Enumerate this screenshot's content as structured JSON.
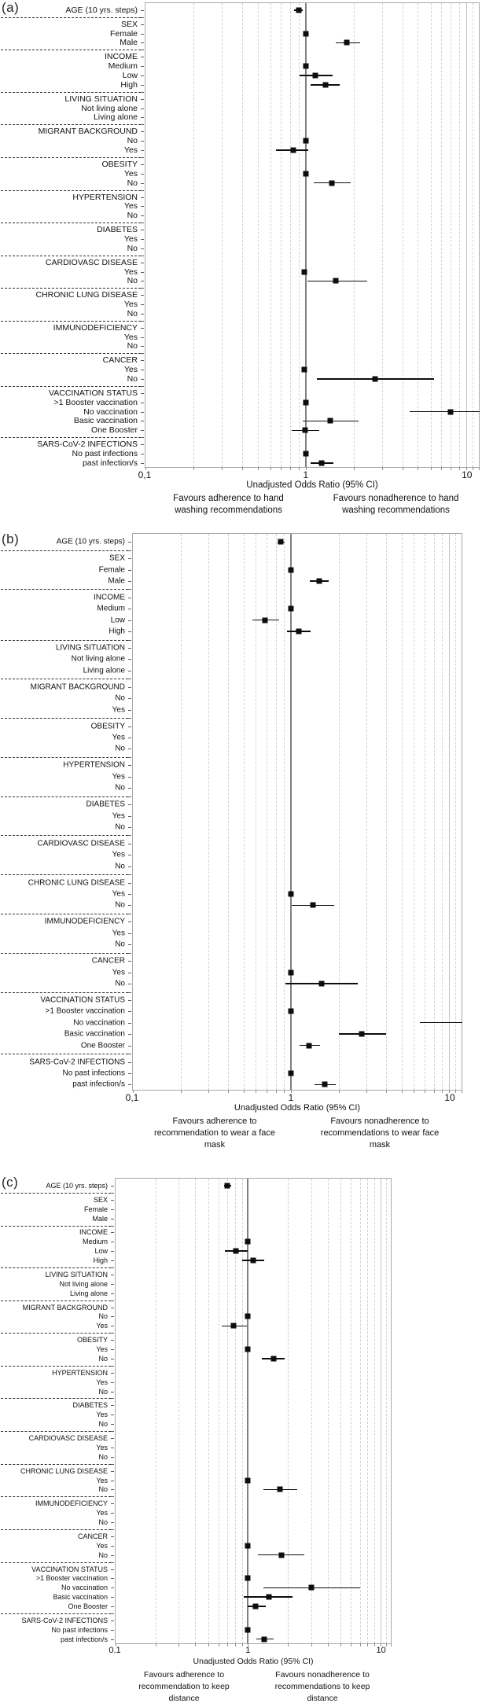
{
  "row_labels": [
    {
      "label": "AGE  (10 yrs. steps)",
      "header": true,
      "sep_after": true
    },
    {
      "label": "SEX",
      "header": true
    },
    {
      "label": "Female"
    },
    {
      "label": "Male",
      "sep_after": true
    },
    {
      "label": "INCOME",
      "header": true
    },
    {
      "label": "Medium"
    },
    {
      "label": "Low"
    },
    {
      "label": "High",
      "sep_after": true
    },
    {
      "label": "LIVING SITUATION",
      "header": true
    },
    {
      "label": "Not living alone"
    },
    {
      "label": "Living alone",
      "sep_after": true
    },
    {
      "label": "MIGRANT BACKGROUND",
      "header": true
    },
    {
      "label": "No"
    },
    {
      "label": "Yes",
      "sep_after": true
    },
    {
      "label": "OBESITY",
      "header": true
    },
    {
      "label": "Yes"
    },
    {
      "label": "No",
      "sep_after": true
    },
    {
      "label": "HYPERTENSION",
      "header": true
    },
    {
      "label": "Yes"
    },
    {
      "label": "No",
      "sep_after": true
    },
    {
      "label": "DIABETES",
      "header": true
    },
    {
      "label": "Yes"
    },
    {
      "label": "No",
      "sep_after": true
    },
    {
      "label": "CARDIOVASC DISEASE",
      "header": true
    },
    {
      "label": "Yes"
    },
    {
      "label": "No",
      "sep_after": true
    },
    {
      "label": "CHRONIC LUNG DISEASE",
      "header": true
    },
    {
      "label": "Yes"
    },
    {
      "label": "No",
      "sep_after": true
    },
    {
      "label": "IMMUNODEFICIENCY",
      "header": true
    },
    {
      "label": "Yes"
    },
    {
      "label": "No",
      "sep_after": true
    },
    {
      "label": "CANCER",
      "header": true
    },
    {
      "label": "Yes"
    },
    {
      "label": "No",
      "sep_after": true
    },
    {
      "label": "VACCINATION STATUS",
      "header": true
    },
    {
      "label": ">1 Booster vaccination"
    },
    {
      "label": "No vaccination"
    },
    {
      "label": "Basic vaccination"
    },
    {
      "label": "One Booster",
      "sep_after": true
    },
    {
      "label": "SARS-CoV-2 INFECTIONS",
      "header": true
    },
    {
      "label": "No past infections"
    },
    {
      "label": "past infection/s"
    }
  ],
  "chart_data": [
    {
      "type": "scatter",
      "panel": "(a)",
      "x_axis": {
        "scale": "log",
        "min": 0.1,
        "max": 12,
        "tick_values": [
          0.1,
          1,
          10
        ],
        "tick_labels": [
          "0,1",
          "1",
          "10"
        ],
        "title": "Unadjusted Odds Ratio (95% CI)",
        "reference_line": 1,
        "grid": true
      },
      "favours_left": [
        "Favours adherence to hand",
        "washing recommendations"
      ],
      "favours_right": [
        "Favours nonadherence to hand",
        "washing recommendations"
      ],
      "values": [
        {
          "or": 0.9,
          "lo": 0.85,
          "hi": 0.96
        },
        null,
        {
          "or": 1.0
        },
        {
          "or": 1.8,
          "lo": 1.53,
          "hi": 2.17
        },
        null,
        {
          "or": 1.0
        },
        {
          "or": 1.15,
          "lo": 0.92,
          "hi": 1.46
        },
        {
          "or": 1.32,
          "lo": 1.07,
          "hi": 1.63
        },
        null,
        null,
        null,
        null,
        {
          "or": 1.0
        },
        {
          "or": 0.84,
          "lo": 0.65,
          "hi": 1.04
        },
        null,
        {
          "or": 1.0
        },
        {
          "or": 1.45,
          "lo": 1.12,
          "hi": 1.9
        },
        null,
        null,
        null,
        null,
        null,
        null,
        null,
        {
          "or": 0.98
        },
        {
          "or": 1.54,
          "lo": 1.02,
          "hi": 2.4
        },
        null,
        null,
        null,
        null,
        null,
        null,
        null,
        {
          "or": 0.98
        },
        {
          "or": 2.7,
          "lo": 1.17,
          "hi": 6.25
        },
        null,
        {
          "or": 1.0
        },
        {
          "or": 7.9,
          "lo": 4.4,
          "hi": 12.5
        },
        {
          "or": 1.42,
          "lo": 0.96,
          "hi": 2.13
        },
        {
          "or": 0.99,
          "lo": 0.82,
          "hi": 1.21
        },
        null,
        {
          "or": 1.0
        },
        {
          "or": 1.25,
          "lo": 1.07,
          "hi": 1.49
        }
      ]
    },
    {
      "type": "scatter",
      "panel": "(b)",
      "x_axis": {
        "scale": "log",
        "min": 0.1,
        "max": 12,
        "tick_values": [
          0.1,
          1,
          10
        ],
        "tick_labels": [
          "0,1",
          "1",
          "10"
        ],
        "title": "Unadjusted Odds Ratio (95% CI)",
        "reference_line": 1,
        "grid": true
      },
      "favours_left": [
        "Favours adherence to",
        "recommendation to wear a face",
        "mask"
      ],
      "favours_right": [
        "Favours nonadherence to",
        "recommendations to wear face",
        "mask"
      ],
      "values": [
        {
          "or": 0.86,
          "lo": 0.82,
          "hi": 0.91
        },
        null,
        {
          "or": 1.0
        },
        {
          "or": 1.5,
          "lo": 1.31,
          "hi": 1.72
        },
        null,
        {
          "or": 1.0
        },
        {
          "or": 0.69,
          "lo": 0.57,
          "hi": 0.84
        },
        {
          "or": 1.12,
          "lo": 0.94,
          "hi": 1.33
        },
        null,
        null,
        null,
        null,
        null,
        null,
        null,
        null,
        null,
        null,
        null,
        null,
        null,
        null,
        null,
        null,
        null,
        null,
        null,
        {
          "or": 1.0
        },
        {
          "or": 1.37,
          "lo": 1.01,
          "hi": 1.88
        },
        null,
        null,
        null,
        null,
        {
          "or": 1.0
        },
        {
          "or": 1.56,
          "lo": 0.92,
          "hi": 2.65
        },
        null,
        {
          "or": 1.0
        },
        {
          "or": null,
          "lo": 6.5,
          "hi": 13,
          "clipped": true
        },
        {
          "or": 2.8,
          "lo": 2.0,
          "hi": 3.97
        },
        {
          "or": 1.3,
          "lo": 1.13,
          "hi": 1.52
        },
        null,
        {
          "or": 1.0
        },
        {
          "or": 1.64,
          "lo": 1.4,
          "hi": 1.91
        }
      ]
    },
    {
      "type": "scatter",
      "panel": "(c)",
      "x_axis": {
        "scale": "log",
        "min": 0.1,
        "max": 12,
        "tick_values": [
          0.1,
          1,
          10
        ],
        "tick_labels": [
          "0.1",
          "1",
          "10"
        ],
        "title": "Unadjusted Odds Ratio (95% CI)",
        "reference_line": 1,
        "grid": true
      },
      "favours_left": [
        "Favours adherence to",
        "recommendation to keep",
        "distance"
      ],
      "favours_right": [
        "Favours nonadherence to",
        "recommendations to keep",
        "distance"
      ],
      "values": [
        {
          "or": 0.7,
          "lo": 0.66,
          "hi": 0.75
        },
        null,
        null,
        null,
        null,
        {
          "or": 1.0
        },
        {
          "or": 0.81,
          "lo": 0.67,
          "hi": 0.99
        },
        {
          "or": 1.1,
          "lo": 0.9,
          "hi": 1.33
        },
        null,
        null,
        null,
        null,
        {
          "or": 1.0
        },
        {
          "or": 0.78,
          "lo": 0.64,
          "hi": 0.98
        },
        null,
        {
          "or": 1.0
        },
        {
          "or": 1.55,
          "lo": 1.28,
          "hi": 1.9
        },
        null,
        null,
        null,
        null,
        null,
        null,
        null,
        null,
        null,
        null,
        {
          "or": 1.0
        },
        {
          "or": 1.74,
          "lo": 1.3,
          "hi": 2.36
        },
        null,
        null,
        null,
        null,
        {
          "or": 1.0
        },
        {
          "or": 1.78,
          "lo": 1.19,
          "hi": 2.67
        },
        null,
        {
          "or": 1.0
        },
        {
          "or": 3.0,
          "lo": 1.3,
          "hi": 7.0
        },
        {
          "or": 1.43,
          "lo": 0.93,
          "hi": 2.17
        },
        {
          "or": 1.14,
          "lo": 1.0,
          "hi": 1.36
        },
        null,
        {
          "or": 1.0
        },
        {
          "or": 1.33,
          "lo": 1.16,
          "hi": 1.55
        }
      ]
    }
  ]
}
